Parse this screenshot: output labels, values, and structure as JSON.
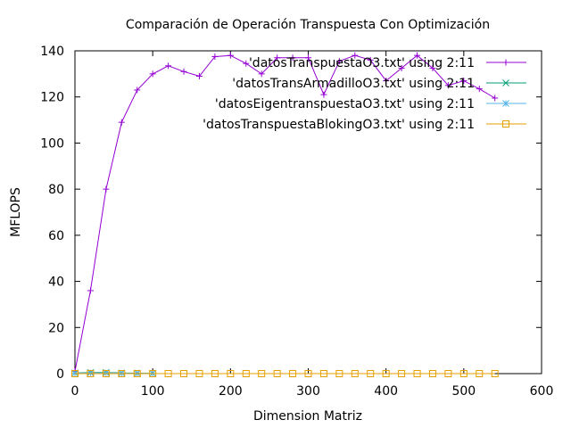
{
  "chart_data": {
    "type": "line",
    "title": "Comparación de Operación Transpuesta Con Optimización",
    "xlabel": "Dimension Matriz",
    "ylabel": "MFLOPS",
    "xlim": [
      0,
      600
    ],
    "ylim": [
      0,
      140
    ],
    "xticks": [
      0,
      100,
      200,
      300,
      400,
      500,
      600
    ],
    "yticks": [
      0,
      20,
      40,
      60,
      80,
      100,
      120,
      140
    ],
    "grid": false,
    "legend_position": "top-right",
    "series": [
      {
        "name": "'datosTranspuestaO3.txt' using 2:11",
        "color": "#9400d3",
        "marker": "plus",
        "points": [
          [
            0,
            1
          ],
          [
            20,
            36
          ],
          [
            40,
            80
          ],
          [
            60,
            109
          ],
          [
            80,
            123
          ],
          [
            100,
            130
          ],
          [
            120,
            133.5
          ],
          [
            140,
            131
          ],
          [
            160,
            129
          ],
          [
            180,
            137.5
          ],
          [
            200,
            138
          ],
          [
            220,
            134.5
          ],
          [
            240,
            130
          ],
          [
            260,
            137
          ],
          [
            280,
            137
          ],
          [
            300,
            137
          ],
          [
            320,
            121
          ],
          [
            340,
            135.5
          ],
          [
            360,
            138
          ],
          [
            380,
            136
          ],
          [
            400,
            127
          ],
          [
            420,
            132.5
          ],
          [
            440,
            138
          ],
          [
            460,
            132.5
          ],
          [
            480,
            125
          ],
          [
            500,
            127
          ],
          [
            520,
            123.5
          ],
          [
            540,
            119.5
          ]
        ]
      },
      {
        "name": "'datosTransArmadilloO3.txt' using 2:11",
        "color": "#009e73",
        "marker": "cross",
        "points": [
          [
            0,
            0.3
          ],
          [
            20,
            0.5
          ],
          [
            40,
            0.5
          ],
          [
            60,
            0.3
          ],
          [
            80,
            0.2
          ],
          [
            100,
            0.1
          ]
        ]
      },
      {
        "name": "'datosEigentranspuestaO3.txt' using 2:11",
        "color": "#56b4e9",
        "marker": "star",
        "points": [
          [
            0,
            0.2
          ],
          [
            20,
            0.3
          ],
          [
            40,
            0.3
          ],
          [
            60,
            0.2
          ],
          [
            80,
            0.1
          ],
          [
            100,
            0.1
          ]
        ]
      },
      {
        "name": "'datosTranspuestaBlokingO3.txt' using 2:11",
        "color": "#e69f00",
        "marker": "square",
        "points": [
          [
            0,
            0
          ],
          [
            20,
            0
          ],
          [
            40,
            0
          ],
          [
            60,
            0
          ],
          [
            80,
            0
          ],
          [
            100,
            0
          ],
          [
            120,
            0
          ],
          [
            140,
            0
          ],
          [
            160,
            0
          ],
          [
            180,
            0
          ],
          [
            200,
            0
          ],
          [
            220,
            0
          ],
          [
            240,
            0
          ],
          [
            260,
            0
          ],
          [
            280,
            0
          ],
          [
            300,
            0
          ],
          [
            320,
            0
          ],
          [
            340,
            0
          ],
          [
            360,
            0
          ],
          [
            380,
            0
          ],
          [
            400,
            0
          ],
          [
            420,
            0
          ],
          [
            440,
            0
          ],
          [
            460,
            0
          ],
          [
            480,
            0
          ],
          [
            500,
            0
          ],
          [
            520,
            0
          ],
          [
            540,
            0
          ]
        ]
      }
    ]
  }
}
